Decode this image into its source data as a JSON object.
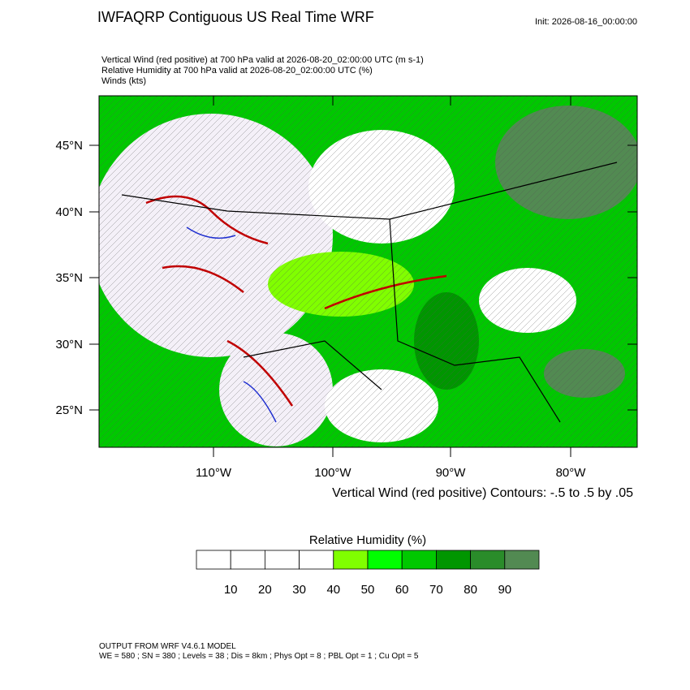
{
  "header": {
    "title": "IWFAQRP Contiguous US Real Time WRF",
    "init": "Init: 2026-08-16_00:00:00",
    "fields": [
      "Vertical Wind (red positive) at 700 hPa valid at 2026-08-20_02:00:00 UTC   (m s-1)",
      "Relative Humidity at 700 hPa valid at 2026-08-20_02:00:00 UTC   (%)",
      "Winds   (kts)"
    ]
  },
  "map": {
    "lat_labels": [
      "45°N",
      "40°N",
      "35°N",
      "30°N",
      "25°N"
    ],
    "lon_labels": [
      "110°W",
      "100°W",
      "90°W",
      "80°W"
    ],
    "contour_note": "Vertical Wind (red positive) Contours: -.5 to .5 by .05"
  },
  "colorbar": {
    "title": "Relative Humidity  (%)",
    "labels": [
      "10",
      "20",
      "30",
      "40",
      "50",
      "60",
      "70",
      "80",
      "90"
    ],
    "colors": [
      "#ffffff",
      "#ffffff",
      "#ffffff",
      "#ffffff",
      "#80ff00",
      "#00ff00",
      "#00c800",
      "#009600",
      "#2a8c2a",
      "#528a52"
    ]
  },
  "footer": [
    "OUTPUT FROM WRF V4.6.1 MODEL",
    "WE = 580 ; SN = 380 ; Levels = 38 ; Dis = 8km ; Phys Opt = 8 ; PBL Opt = 1 ; Cu Opt = 5"
  ]
}
